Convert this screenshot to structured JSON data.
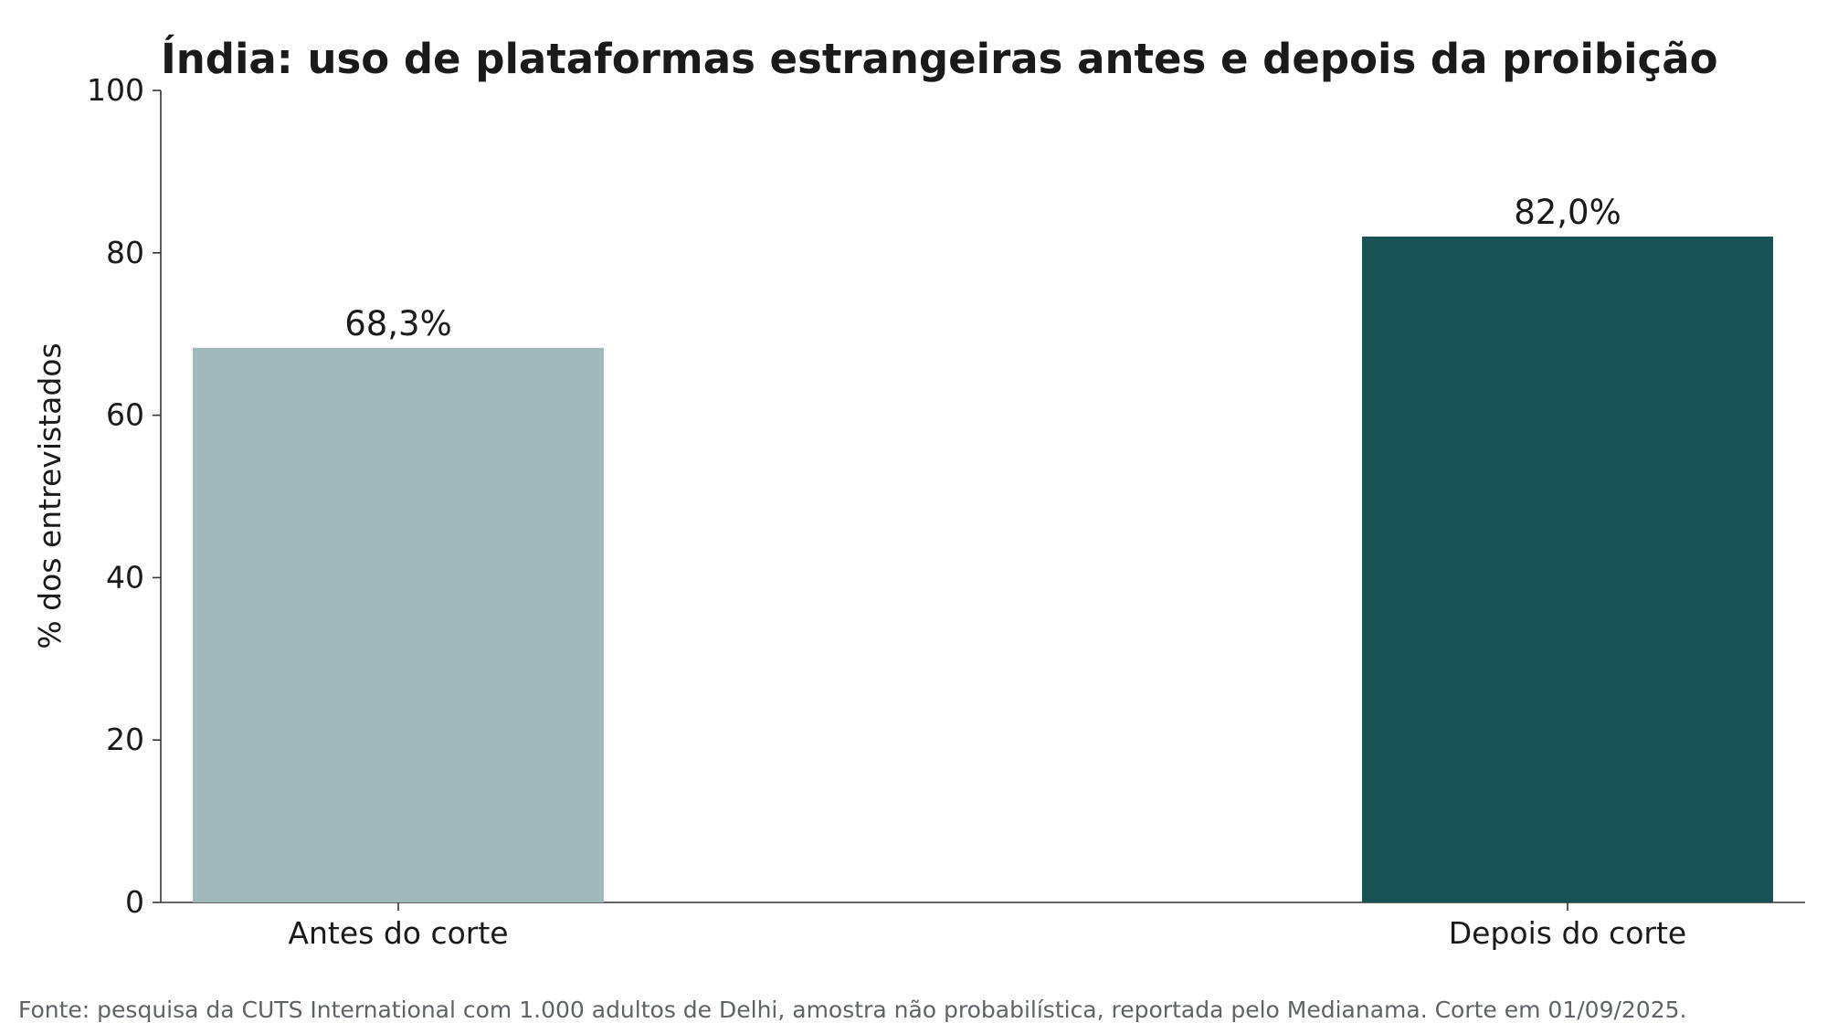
{
  "chart_data": {
    "type": "bar",
    "title": "Índia: uso de plataformas estrangeiras antes e depois da proibição",
    "xlabel": "",
    "ylabel": "% dos entrevistados",
    "categories": [
      "Antes do corte",
      "Depois do corte"
    ],
    "values": [
      68.3,
      82.0
    ],
    "value_labels": [
      "68,3%",
      "82,0%"
    ],
    "bar_colors": [
      "#9fb9ba",
      "#175254"
    ],
    "ylim": [
      0,
      100
    ],
    "yticks": [
      0,
      20,
      40,
      60,
      80,
      100
    ],
    "ytick_labels": [
      "0",
      "20",
      "40",
      "60",
      "80",
      "100"
    ],
    "grid": false,
    "legend": "none"
  },
  "source_note": "Fonte: pesquisa da CUTS International com 1.000 adultos de Delhi, amostra não probabilística, reportada pelo Medianama. Corte em 01/09/2025."
}
